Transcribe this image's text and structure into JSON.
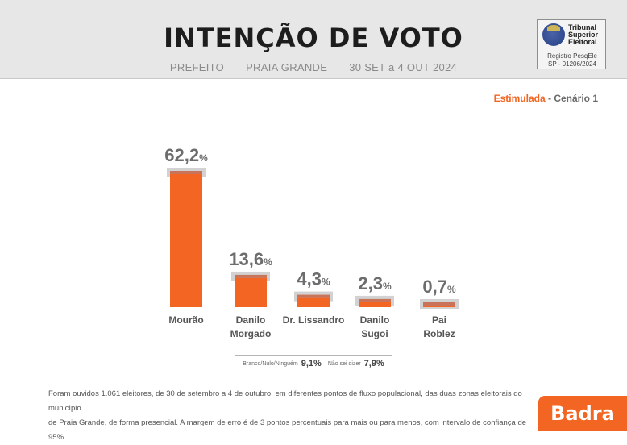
{
  "header": {
    "title": "INTENÇÃO DE VOTO",
    "office": "PREFEITO",
    "city": "PRAIA GRANDE",
    "period": "30 SET a 4 OUT 2024"
  },
  "tse": {
    "line1": "Tribunal",
    "line2": "Superior",
    "line3": "Eleitoral",
    "reg1": "Registro PesqEle",
    "reg2": "SP - 01206/2024"
  },
  "scenario": {
    "type": "Estimulada",
    "sep": " - ",
    "name": "Cenário 1"
  },
  "colors": {
    "bar": "#f26522",
    "bar_top": "#c9745a",
    "bar_shadow": "#d2d2d2",
    "value": "#6d6d6d",
    "label": "#555555"
  },
  "chart_data": {
    "type": "bar",
    "title": "INTENÇÃO DE VOTO",
    "categories": [
      "Mourão",
      "Danilo Morgado",
      "Dr. Lissandro",
      "Danilo Sugoi",
      "Pai Roblez"
    ],
    "label_lines": [
      [
        "Mourão"
      ],
      [
        "Danilo",
        "Morgado"
      ],
      [
        "Dr. Lissandro"
      ],
      [
        "Danilo",
        "Sugoi"
      ],
      [
        "Pai",
        "Roblez"
      ]
    ],
    "values": [
      62.2,
      13.6,
      4.3,
      2.3,
      0.7
    ],
    "value_labels": [
      "62,2",
      "13,6",
      "4,3",
      "2,3",
      "0,7"
    ],
    "unit": "%",
    "ylim": [
      0,
      62.2
    ],
    "xlabel": "",
    "ylabel": ""
  },
  "others": {
    "blank_label": "Branco/Nulo/Ninguém",
    "blank_value": "9,1%",
    "dk_label": "Não sei dizer",
    "dk_value": "7,9%"
  },
  "footnote": {
    "line1": "Foram ouvidos 1.061 eleitores, de 30 de setembro a 4 de outubro, em diferentes pontos de fluxo populacional, das duas zonas eleitorais do município",
    "line2": "de Praia Grande, de forma presencial. A margem de erro é de 3 pontos percentuais para mais ou para menos, com intervalo de confiança de 95%."
  },
  "logo": "Badra"
}
